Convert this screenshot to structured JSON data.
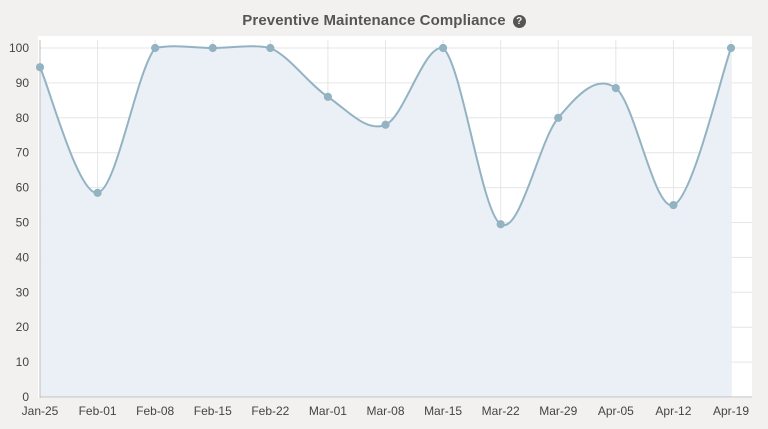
{
  "header": {
    "title": "Preventive Maintenance Compliance",
    "help_icon": "question-circle-icon",
    "help_glyph": "?"
  },
  "colors": {
    "line": "#93b3c3",
    "fill": "#e9eff6",
    "point": "#93b3c3",
    "grid": "#e6e6e6",
    "axis": "#bdbdbd",
    "text": "#444444"
  },
  "chart_data": {
    "type": "area",
    "title": "Preventive Maintenance Compliance",
    "xlabel": "",
    "ylabel": "",
    "categories": [
      "Jan-25",
      "Feb-01",
      "Feb-08",
      "Feb-15",
      "Feb-22",
      "Mar-01",
      "Mar-08",
      "Mar-15",
      "Mar-22",
      "Mar-29",
      "Apr-05",
      "Apr-12",
      "Apr-19"
    ],
    "series": [
      {
        "values": [
          94.5,
          58.5,
          100,
          100,
          100,
          86,
          78,
          100,
          49.5,
          80,
          88.5,
          55,
          100
        ]
      }
    ],
    "ylim": [
      0,
      100
    ],
    "yticks": [
      0,
      10,
      20,
      30,
      40,
      50,
      60,
      70,
      80,
      90,
      100
    ],
    "grid": true,
    "curve": "smooth",
    "markers": true,
    "legend": "none"
  }
}
